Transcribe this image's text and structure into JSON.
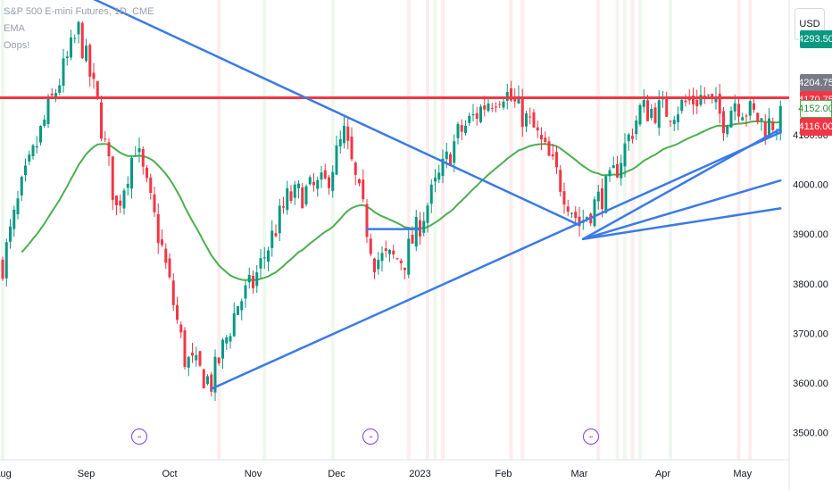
{
  "legend": {
    "symbol": "S&P 500 E-mini Futures, 1D, CME",
    "ema": "EMA",
    "oops": "Oops!"
  },
  "currency": "USD",
  "price_tags": [
    {
      "label": "4293.50",
      "price": 4293.5,
      "color": "#089981"
    },
    {
      "label": "4204.75",
      "price": 4204.75,
      "color": "#787b86"
    },
    {
      "label": "4170.75",
      "price": 4170.75,
      "color": "#f23645"
    },
    {
      "label": "4152.00",
      "price": 4152.0,
      "color": "#ffffff",
      "text_color": "#2e8b3c",
      "border": "#4caf50"
    },
    {
      "label": "4116.00",
      "price": 4116.0,
      "color": "#f23645"
    }
  ],
  "event_icon_glyph": "⍆",
  "chart_data": {
    "type": "candlestick",
    "title": "",
    "symbol": "S&P 500 E-mini Futures",
    "interval": "1D",
    "exchange": "CME",
    "y_axis": {
      "ticks": [
        3500,
        3600,
        3700,
        3800,
        3900,
        4000,
        4100,
        4293.5
      ],
      "tick_labels": [
        "3500.00",
        "3600.00",
        "3700.00",
        "3800.00",
        "3900.00",
        "4000.00",
        "4100.00"
      ],
      "range": [
        3445,
        4345
      ]
    },
    "x_axis": {
      "labels": [
        "Aug",
        "Sep",
        "Oct",
        "Nov",
        "Dec",
        "2023",
        "Feb",
        "Mar",
        "Apr",
        "May"
      ],
      "label_day_index": [
        0,
        22,
        44,
        66,
        88,
        110,
        132,
        152,
        174,
        195
      ]
    },
    "horizontal_level": {
      "price": 4175,
      "color": "#f23645"
    },
    "support_resistance_lines": [
      {
        "from": [
          -3,
          4470
        ],
        "to": [
          152,
          3918
        ],
        "color": "#3b7ae6"
      },
      {
        "from": [
          55,
          3588
        ],
        "to": [
          205,
          4105
        ],
        "color": "#3b7ae6"
      },
      {
        "from": [
          153,
          3890
        ],
        "to": [
          205,
          4112
        ],
        "color": "#3b7ae6"
      },
      {
        "from": [
          153,
          3890
        ],
        "to": [
          205,
          4008
        ],
        "color": "#3b7ae6"
      },
      {
        "from": [
          153,
          3890
        ],
        "to": [
          205,
          3952
        ],
        "color": "#3b7ae6"
      },
      {
        "from": [
          96,
          3910
        ],
        "to": [
          110,
          3910
        ],
        "color": "#3b7ae6"
      }
    ],
    "ema_color": "#4caf50",
    "event_day_index": [
      36,
      97,
      155
    ],
    "price_path_anchors": [
      [
        0,
        3840
      ],
      [
        5,
        3990
      ],
      [
        12,
        4150
      ],
      [
        20,
        4310
      ],
      [
        25,
        4160
      ],
      [
        30,
        3950
      ],
      [
        35,
        4080
      ],
      [
        42,
        3870
      ],
      [
        48,
        3650
      ],
      [
        55,
        3600
      ],
      [
        62,
        3760
      ],
      [
        66,
        3800
      ],
      [
        75,
        3970
      ],
      [
        85,
        4000
      ],
      [
        90,
        4100
      ],
      [
        98,
        3850
      ],
      [
        106,
        3850
      ],
      [
        112,
        3960
      ],
      [
        120,
        4100
      ],
      [
        128,
        4170
      ],
      [
        132,
        4190
      ],
      [
        140,
        4110
      ],
      [
        146,
        4020
      ],
      [
        152,
        3920
      ],
      [
        160,
        4000
      ],
      [
        168,
        4150
      ],
      [
        176,
        4150
      ],
      [
        185,
        4180
      ],
      [
        190,
        4130
      ],
      [
        193,
        4170
      ],
      [
        201,
        4120
      ],
      [
        205,
        4130
      ]
    ],
    "candle_count": 206
  }
}
